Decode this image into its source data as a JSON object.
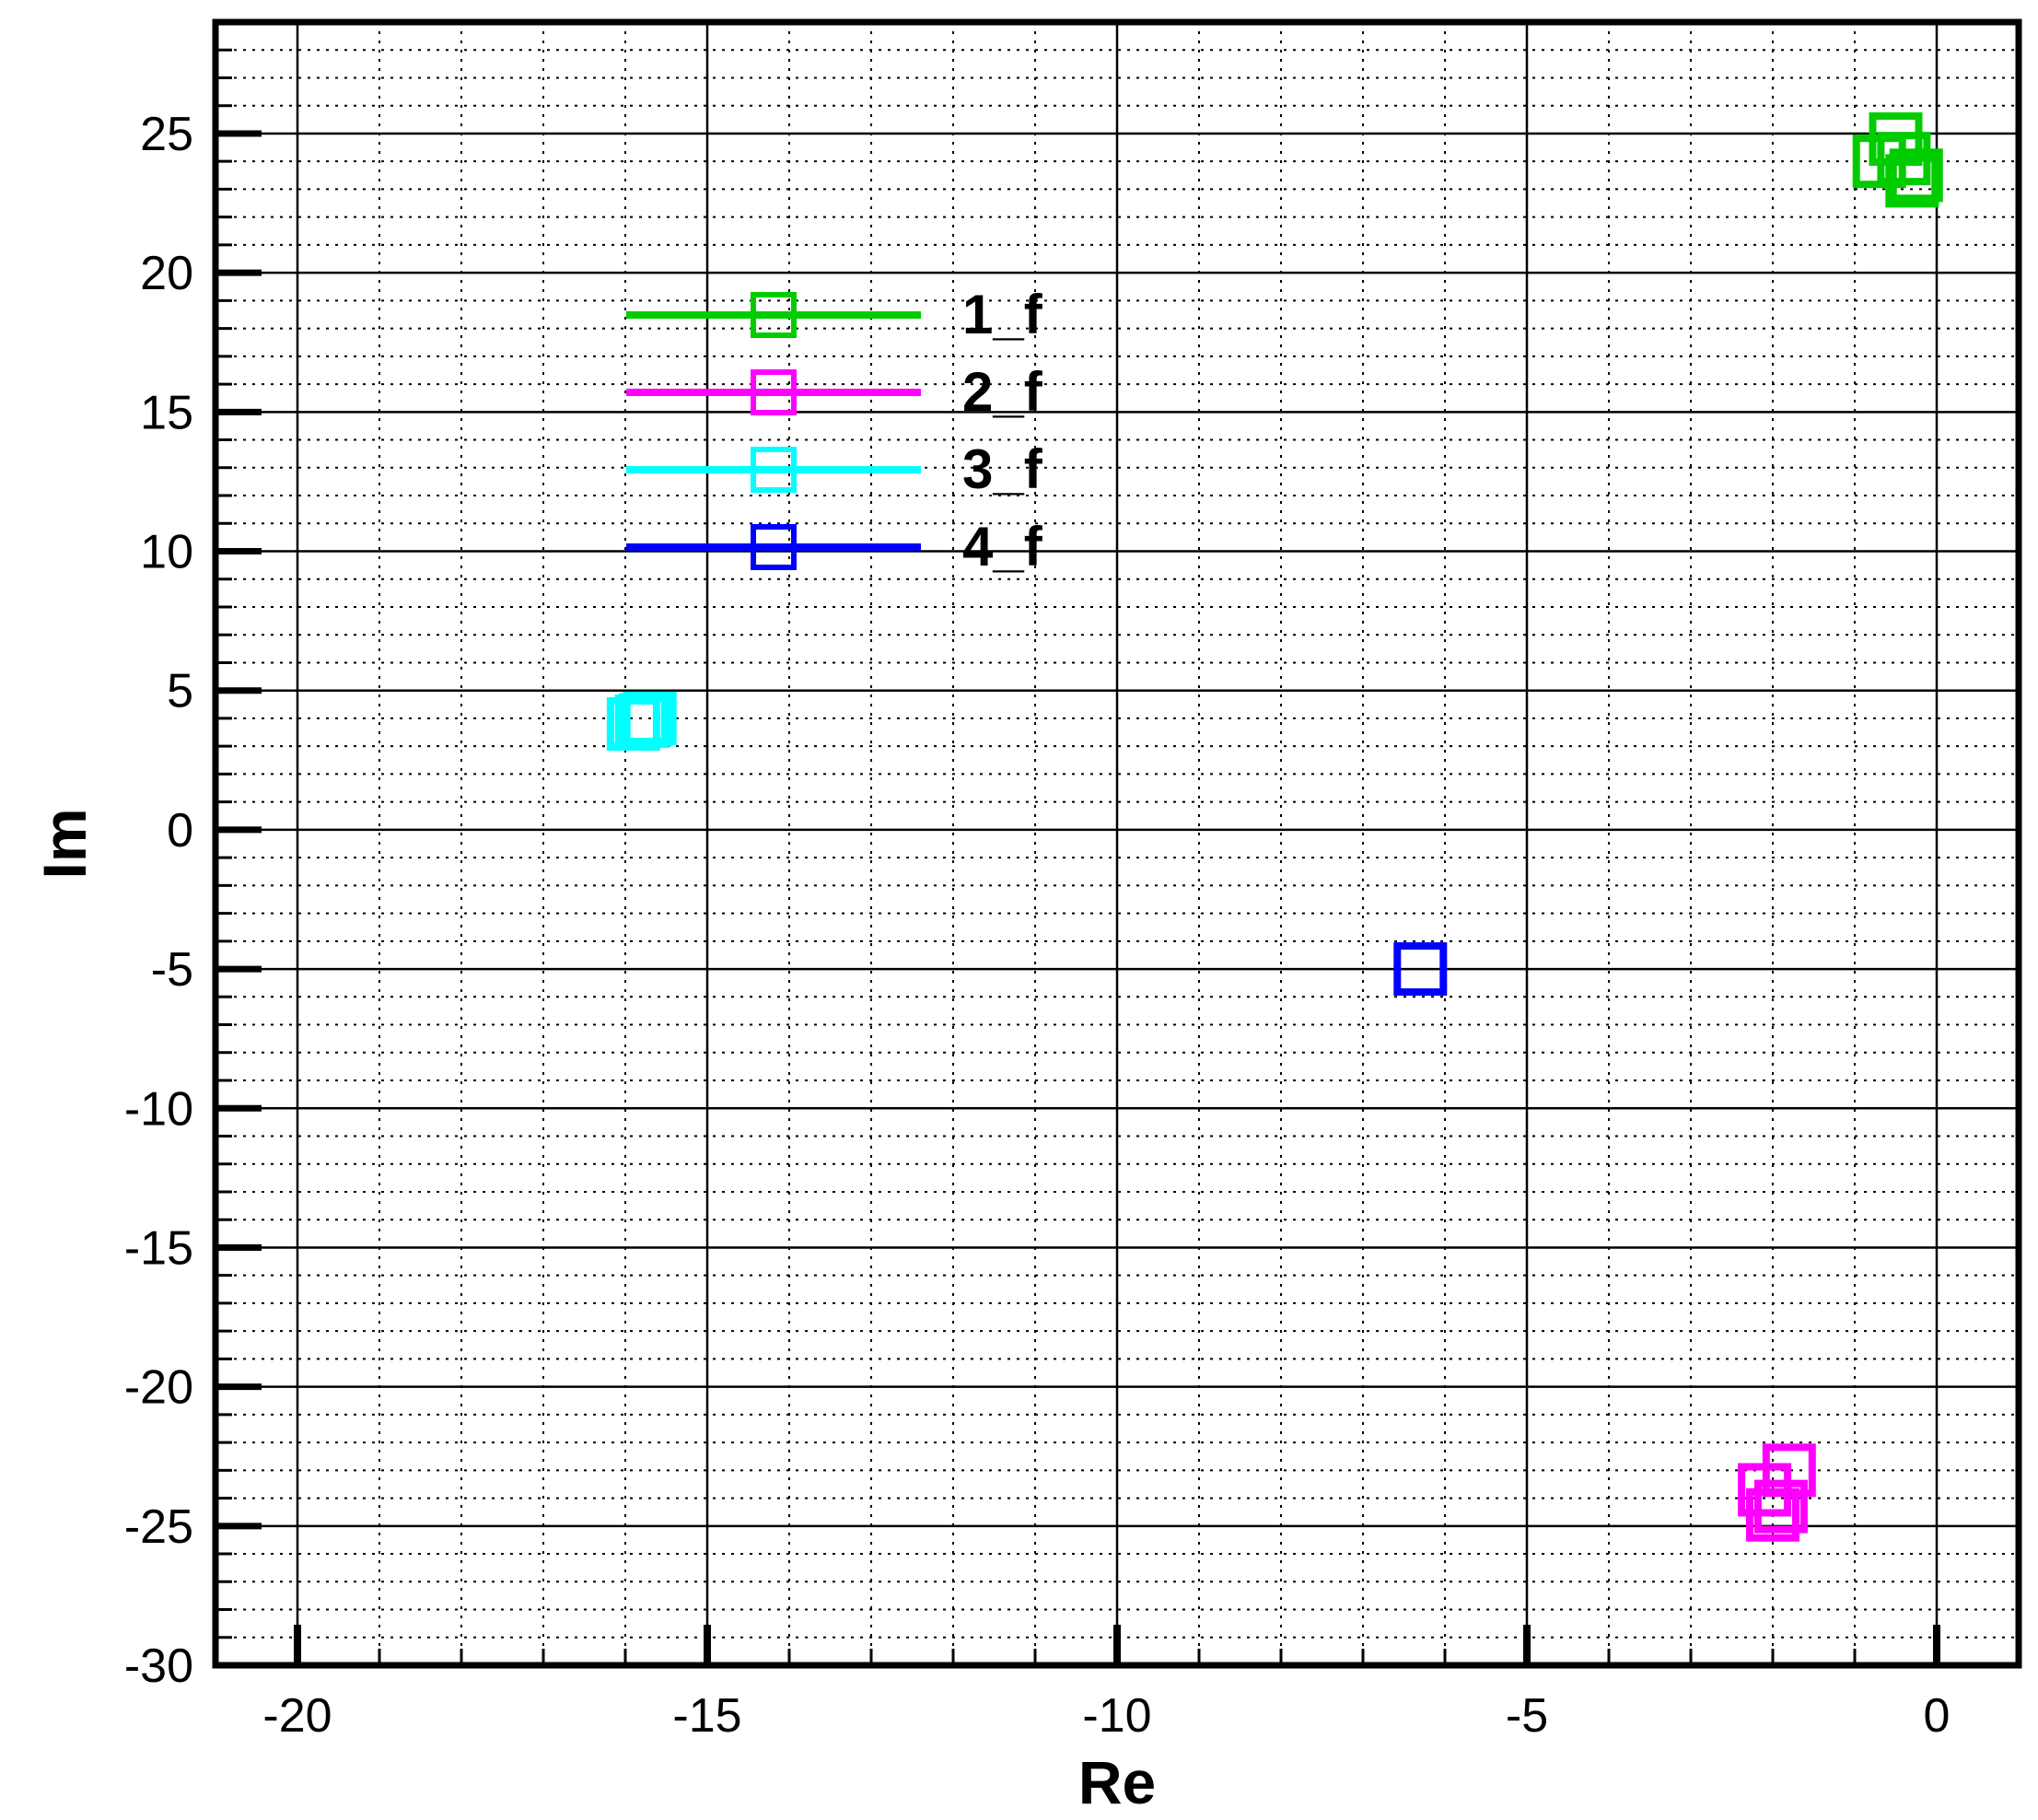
{
  "chart_data": {
    "type": "scatter",
    "title": "",
    "xlabel": "Re",
    "ylabel": "Im",
    "xlim": [
      -21,
      1
    ],
    "ylim": [
      -30,
      29
    ],
    "x_ticks": [
      -20,
      -15,
      -10,
      -5,
      0
    ],
    "y_ticks": [
      25,
      20,
      15,
      10,
      5,
      0,
      -5,
      -10,
      -15,
      -20,
      -25,
      -30
    ],
    "x_minor_step": 1,
    "y_minor_step": 1,
    "grid": true,
    "legend_position": "upper-left",
    "marker": "open-square",
    "series": [
      {
        "name": "1_f",
        "color": "#00cc00",
        "points": [
          [
            -0.5,
            24.8
          ],
          [
            -0.7,
            24.0
          ],
          [
            -0.4,
            24.1
          ],
          [
            -0.25,
            23.5
          ],
          [
            -0.3,
            23.3
          ]
        ]
      },
      {
        "name": "2_f",
        "color": "#ff00ff",
        "points": [
          [
            -1.8,
            -23.0
          ],
          [
            -2.1,
            -23.7
          ],
          [
            -1.9,
            -24.3
          ],
          [
            -2.0,
            -24.6
          ]
        ]
      },
      {
        "name": "3_f",
        "color": "#00ffff",
        "points": [
          [
            -15.8,
            3.9
          ],
          [
            -15.7,
            4.0
          ],
          [
            -15.9,
            3.8
          ],
          [
            -15.75,
            3.95
          ]
        ]
      },
      {
        "name": "4_f",
        "color": "#0000ff",
        "points": [
          [
            -6.3,
            -5.0
          ]
        ]
      }
    ]
  }
}
